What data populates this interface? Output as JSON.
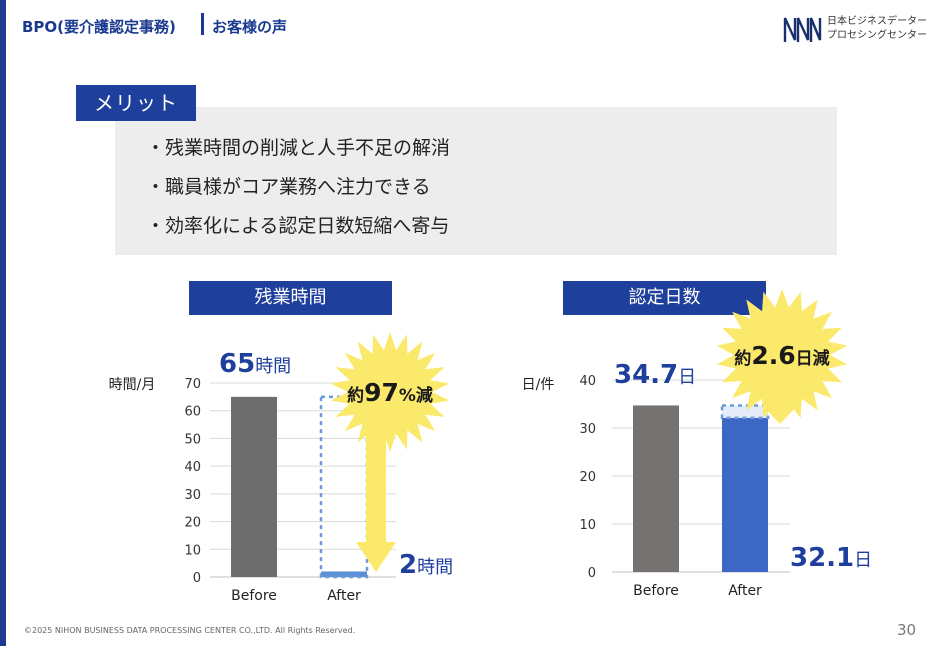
{
  "header": {
    "title": "BPO(要介護認定事務)",
    "subtitle": "お客様の声"
  },
  "logo": {
    "icon": "company-logo-icon",
    "line1": "日本ビジネスデーター",
    "line2": "プロセシングセンター"
  },
  "merit": {
    "label": "メリット",
    "items": [
      "・残業時間の削減と人手不足の解消",
      "・職員様がコア業務へ注力できる",
      "・効率化による認定日数短縮へ寄与"
    ]
  },
  "accent_color": "#1f3f9c",
  "chart_data": [
    {
      "type": "bar",
      "title": "残業時間",
      "ylabel": "時間/月",
      "ylim": [
        0,
        70
      ],
      "yticks": [
        0,
        10,
        20,
        30,
        40,
        50,
        60,
        70
      ],
      "categories": [
        "Before",
        "After"
      ],
      "values": [
        65,
        2
      ],
      "bar_colors": [
        "#6e6e6e",
        "#5b8fd6"
      ],
      "annotations": {
        "before_value": "65",
        "before_unit": "時間",
        "after_value": "2",
        "after_unit": "時間",
        "burst_pre": "約",
        "burst_value": "97",
        "burst_post": "%減"
      }
    },
    {
      "type": "bar",
      "title": "認定日数",
      "ylabel": "日/件",
      "ylim": [
        0,
        40
      ],
      "yticks": [
        0,
        10,
        20,
        30,
        40
      ],
      "categories": [
        "Before",
        "After"
      ],
      "values": [
        34.7,
        32.1
      ],
      "bar_colors": [
        "#767272",
        "#3c67c4"
      ],
      "annotations": {
        "before_value": "34.7",
        "before_unit": "日",
        "after_value": "32.1",
        "after_unit": "日",
        "burst_pre": "約",
        "burst_value": "2.6",
        "burst_post": "日減"
      }
    }
  ],
  "footer": {
    "copyright": "©2025 NIHON BUSINESS DATA PROCESSING CENTER CO.,LTD.  All Rights Reserved.",
    "page": "30"
  }
}
